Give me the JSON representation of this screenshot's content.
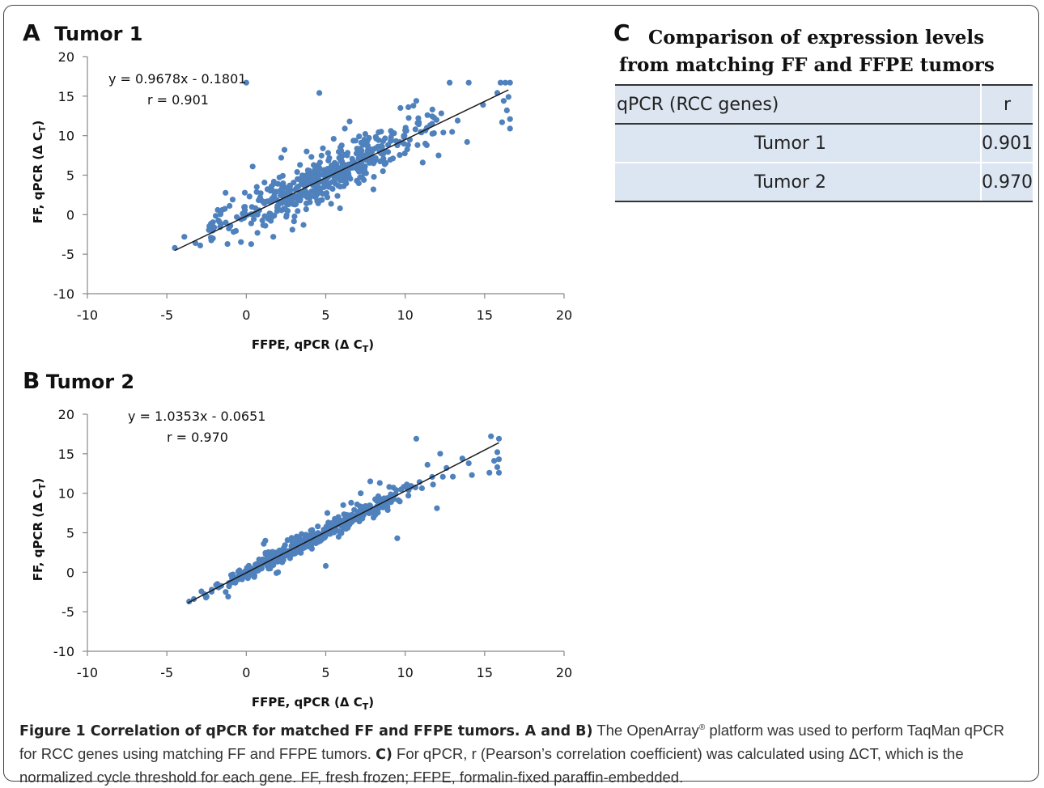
{
  "chart_data": [
    {
      "type": "scatter",
      "panel_letter": "A",
      "title": "Tumor 1",
      "xlabel": "FFPE, qPCR (Δ C",
      "ylabel": "FF, qPCR (Δ C",
      "label_subscript": "T",
      "label_close": ")",
      "xlim": [
        -10,
        20
      ],
      "ylim": [
        -10,
        20
      ],
      "x_ticks": [
        -10,
        -5,
        0,
        5,
        10,
        15,
        20
      ],
      "y_ticks": [
        -10,
        -5,
        0,
        5,
        10,
        15,
        20
      ],
      "x_tick_labels": [
        "-10",
        "-5",
        "0",
        "5",
        "10",
        "15",
        "20"
      ],
      "y_tick_labels": [
        "-10",
        "-5",
        "0",
        "5",
        "10",
        "15",
        "20"
      ],
      "trendline": {
        "slope": 0.9678,
        "intercept": -0.1801,
        "x_range": [
          -4.5,
          16.5
        ]
      },
      "equation": "y = 0.9678x - 0.1801",
      "r_text": "r = 0.901",
      "grid": false,
      "legend": "none",
      "marker_color": "#4f81bd",
      "line_color": "#1a1a1a",
      "points": {
        "outliers": [
          [
            -4.5,
            -4.2
          ],
          [
            -3.9,
            -2.8
          ],
          [
            -3.2,
            -3.6
          ],
          [
            -2.9,
            -3.9
          ],
          [
            -2.1,
            -3.0
          ],
          [
            -1.6,
            -1.2
          ],
          [
            -1.8,
            0.6
          ],
          [
            -1.0,
            -1.4
          ],
          [
            -0.6,
            -0.3
          ],
          [
            0.0,
            16.7
          ],
          [
            0.4,
            6.1
          ],
          [
            0.2,
            2.3
          ],
          [
            0.7,
            -2.3
          ],
          [
            1.2,
            -1.4
          ],
          [
            1.5,
            1.6
          ],
          [
            1.7,
            -2.8
          ],
          [
            2.4,
            8.2
          ],
          [
            2.9,
            -1.9
          ],
          [
            3.6,
            -1.3
          ],
          [
            3.2,
            5.4
          ],
          [
            4.6,
            15.4
          ],
          [
            3.8,
            8.0
          ],
          [
            4.1,
            7.3
          ],
          [
            5.1,
            2.2
          ],
          [
            5.5,
            9.6
          ],
          [
            6.2,
            10.9
          ],
          [
            6.5,
            11.8
          ],
          [
            7.1,
            9.9
          ],
          [
            7.4,
            4.4
          ],
          [
            8.0,
            3.2
          ],
          [
            8.6,
            5.5
          ],
          [
            9.1,
            10.6
          ],
          [
            9.7,
            13.5
          ],
          [
            10.2,
            13.6
          ],
          [
            10.7,
            14.4
          ],
          [
            11.1,
            6.6
          ],
          [
            11.4,
            12.6
          ],
          [
            12.1,
            7.5
          ],
          [
            12.4,
            10.4
          ],
          [
            12.8,
            16.7
          ],
          [
            13.3,
            11.9
          ],
          [
            13.9,
            9.2
          ],
          [
            14.0,
            16.7
          ],
          [
            16.0,
            16.7
          ],
          [
            16.3,
            16.7
          ],
          [
            16.6,
            16.7
          ],
          [
            16.2,
            14.4
          ],
          [
            16.4,
            13.2
          ],
          [
            16.6,
            12.1
          ],
          [
            16.6,
            10.9
          ],
          [
            16.1,
            11.7
          ],
          [
            15.8,
            15.4
          ],
          [
            16.5,
            14.9
          ],
          [
            14.9,
            13.9
          ],
          [
            11.7,
            11.5
          ],
          [
            5.9,
            0.8
          ],
          [
            2.2,
            7.2
          ],
          [
            4.3,
            4.1
          ]
        ],
        "cloud": {
          "seed": 11,
          "count": 460,
          "x_min": -2.5,
          "x_max": 13.0,
          "x_center": 4.8,
          "x_spread": 3.2,
          "y_noise": 1.35
        }
      }
    },
    {
      "type": "scatter",
      "panel_letter": "B",
      "title": "Tumor 2",
      "xlabel": "FFPE, qPCR (Δ C",
      "ylabel": "FF, qPCR (Δ C",
      "label_subscript": "T",
      "label_close": ")",
      "xlim": [
        -10,
        20
      ],
      "ylim": [
        -10,
        20
      ],
      "x_ticks": [
        -10,
        -5,
        0,
        5,
        10,
        15,
        20
      ],
      "y_ticks": [
        -10,
        -5,
        0,
        5,
        10,
        15,
        20
      ],
      "x_tick_labels": [
        "-10",
        "-5",
        "0",
        "5",
        "10",
        "15",
        "20"
      ],
      "y_tick_labels": [
        "-10",
        "-5",
        "0",
        "5",
        "10",
        "15",
        "20"
      ],
      "trendline": {
        "slope": 1.0353,
        "intercept": -0.0651,
        "x_range": [
          -3.7,
          15.9
        ]
      },
      "equation": "y = 1.0353x - 0.0651",
      "r_text": "r = 0.970",
      "grid": false,
      "legend": "none",
      "marker_color": "#4f81bd",
      "line_color": "#1a1a1a",
      "points": {
        "outliers": [
          [
            -3.6,
            -3.7
          ],
          [
            -3.3,
            -3.4
          ],
          [
            -2.5,
            -3.1
          ],
          [
            -1.9,
            -1.6
          ],
          [
            -0.5,
            0.1
          ],
          [
            1.2,
            4.0
          ],
          [
            1.1,
            3.6
          ],
          [
            1.9,
            -0.1
          ],
          [
            2.0,
            0.0
          ],
          [
            4.5,
            5.8
          ],
          [
            5.1,
            7.5
          ],
          [
            5.0,
            0.8
          ],
          [
            6.1,
            8.5
          ],
          [
            6.6,
            8.8
          ],
          [
            7.2,
            10.0
          ],
          [
            7.8,
            11.5
          ],
          [
            8.4,
            11.3
          ],
          [
            9.0,
            10.8
          ],
          [
            9.5,
            4.3
          ],
          [
            10.7,
            16.9
          ],
          [
            11.4,
            13.6
          ],
          [
            12.0,
            8.1
          ],
          [
            12.2,
            15.0
          ],
          [
            12.6,
            13.2
          ],
          [
            13.0,
            12.1
          ],
          [
            14.0,
            13.8
          ],
          [
            14.2,
            12.3
          ],
          [
            15.3,
            12.6
          ],
          [
            15.4,
            17.2
          ],
          [
            15.9,
            16.9
          ],
          [
            15.8,
            15.2
          ],
          [
            15.9,
            14.3
          ],
          [
            15.8,
            13.3
          ],
          [
            15.9,
            12.6
          ],
          [
            15.6,
            14.1
          ],
          [
            13.6,
            14.4
          ],
          [
            10.2,
            9.7
          ],
          [
            8.1,
            7.6
          ]
        ],
        "cloud": {
          "seed": 29,
          "count": 430,
          "x_min": -3.2,
          "x_max": 12.5,
          "x_center": 4.2,
          "x_spread": 3.0,
          "y_noise": 0.55
        }
      }
    }
  ],
  "panel_c": {
    "letter": "C",
    "title_line1": "Comparison of expression levels",
    "title_line2": "from matching FF and FFPE tumors",
    "header": [
      "qPCR (RCC genes)",
      "r"
    ],
    "rows": [
      [
        "Tumor 1",
        "0.901"
      ],
      [
        "Tumor 2",
        "0.970"
      ]
    ]
  },
  "caption": {
    "bold": "Figure 1 Correlation of qPCR for matched FF and FFPE tumors. A and B)",
    "part1": " The OpenArray",
    "reg": "®",
    "part2": " platform was used to perform TaqMan qPCR for RCC genes using matching FF and FFPE tumors. ",
    "bold2": "C)",
    "part3": " For qPCR, r (Pearson’s correlation coefficient) was calculated using ΔCT, which is the normalized cycle threshold for each gene. FF, fresh frozen; FFPE, formalin-fixed paraffin-embedded."
  }
}
